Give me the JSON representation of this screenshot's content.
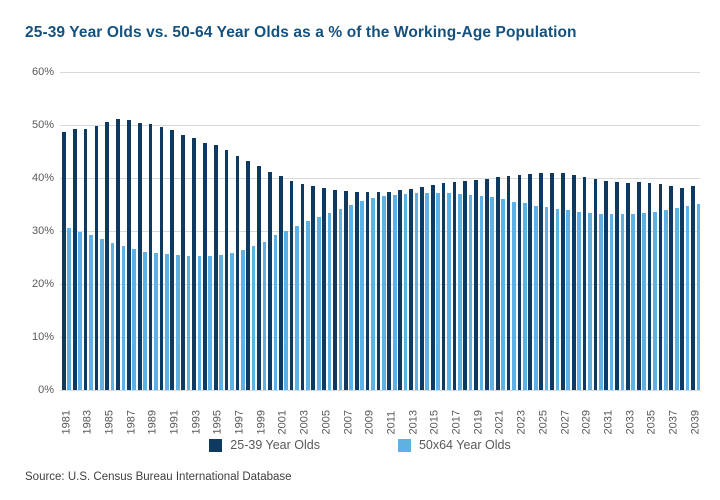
{
  "chart": {
    "title": "25-39 Year Olds vs. 50-64 Year Olds as a % of the Working-Age Population",
    "source": "Source: U.S. Census Bureau International Database",
    "legend": [
      {
        "label": "25-39 Year Olds",
        "color": "#0E3A61"
      },
      {
        "label": "50x64 Year Olds",
        "color": "#5FB0E3"
      }
    ]
  },
  "chart_data": {
    "type": "bar",
    "title": "25-39 Year Olds vs. 50-64 Year Olds as a % of the Working-Age Population",
    "xlabel": "",
    "ylabel": "",
    "ylim": [
      0,
      60
    ],
    "y_ticks": [
      0,
      10,
      20,
      30,
      40,
      50,
      60
    ],
    "y_tick_suffix": "%",
    "x_tick_step": 2,
    "grid": true,
    "legend_position": "bottom",
    "categories": [
      1981,
      1982,
      1983,
      1984,
      1985,
      1986,
      1987,
      1988,
      1989,
      1990,
      1991,
      1992,
      1993,
      1994,
      1995,
      1996,
      1997,
      1998,
      1999,
      2000,
      2001,
      2002,
      2003,
      2004,
      2005,
      2006,
      2007,
      2008,
      2009,
      2010,
      2011,
      2012,
      2013,
      2014,
      2015,
      2016,
      2017,
      2018,
      2019,
      2020,
      2021,
      2022,
      2023,
      2024,
      2025,
      2026,
      2027,
      2028,
      2029,
      2030,
      2031,
      2032,
      2033,
      2034,
      2035,
      2036,
      2037,
      2038,
      2039
    ],
    "series": [
      {
        "name": "25-39 Year Olds",
        "color": "#0E3A61",
        "values": [
          48.7,
          49.2,
          49.3,
          49.9,
          50.6,
          51.2,
          50.9,
          50.4,
          50.1,
          49.6,
          49.0,
          48.2,
          47.5,
          46.7,
          46.2,
          45.3,
          44.2,
          43.2,
          42.2,
          41.2,
          40.4,
          39.5,
          38.9,
          38.4,
          38.1,
          37.8,
          37.6,
          37.4,
          37.3,
          37.3,
          37.4,
          37.7,
          38.0,
          38.3,
          38.7,
          39.0,
          39.3,
          39.5,
          39.7,
          39.9,
          40.2,
          40.4,
          40.6,
          40.8,
          41.0,
          41.0,
          40.9,
          40.6,
          40.2,
          39.8,
          39.5,
          39.2,
          39.1,
          39.2,
          39.0,
          38.8,
          38.5,
          38.2,
          38.5
        ]
      },
      {
        "name": "50x64 Year Olds",
        "color": "#5FB0E3",
        "values": [
          30.6,
          29.9,
          29.2,
          28.5,
          27.8,
          27.2,
          26.6,
          26.1,
          25.8,
          25.6,
          25.4,
          25.2,
          25.2,
          25.3,
          25.4,
          25.9,
          26.4,
          27.2,
          28.0,
          29.2,
          30.0,
          30.9,
          31.8,
          32.6,
          33.4,
          34.2,
          34.9,
          35.6,
          36.2,
          36.6,
          36.8,
          37.0,
          37.1,
          37.1,
          37.2,
          37.1,
          37.0,
          36.8,
          36.6,
          36.4,
          36.0,
          35.5,
          35.2,
          34.7,
          34.5,
          34.2,
          33.9,
          33.6,
          33.4,
          33.3,
          33.3,
          33.3,
          33.3,
          33.4,
          33.6,
          34.0,
          34.4,
          34.7,
          35.1
        ]
      }
    ]
  }
}
